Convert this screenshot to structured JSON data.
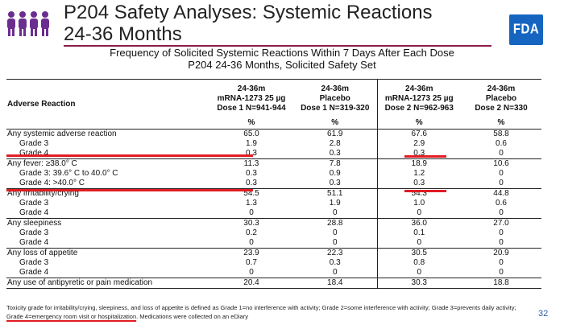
{
  "header": {
    "title_line1": "P204 Safety Analyses: Systemic Reactions",
    "title_line2": "24-36 Months",
    "logo_text": "FDA",
    "icon": "people-group-icon"
  },
  "subtitle": {
    "line1": "Frequency of Solicited Systemic Reactions Within 7 Days After Each Dose",
    "line2": "P204 24-36 Months, Solicited Safety Set"
  },
  "table": {
    "row_header": "Adverse Reaction",
    "columns": [
      {
        "l1": "24-36m",
        "l2": "mRNA-1273 25 µg",
        "l3": "Dose 1 N=941-944",
        "unit": "%"
      },
      {
        "l1": "24-36m",
        "l2": "Placebo",
        "l3": "Dose 1 N=319-320",
        "unit": "%"
      },
      {
        "l1": "24-36m",
        "l2": "mRNA-1273 25 µg",
        "l3": "Dose 2 N=962-963",
        "unit": "%"
      },
      {
        "l1": "24-36m",
        "l2": "Placebo",
        "l3": "Dose 2 N=330",
        "unit": "%"
      }
    ],
    "rows": [
      {
        "label": "Any systemic adverse reaction",
        "values": [
          "65.0",
          "61.9",
          "67.6",
          "58.8"
        ]
      },
      {
        "label": "Grade 3",
        "values": [
          "1.9",
          "2.8",
          "2.9",
          "0.6"
        ]
      },
      {
        "label": "Grade 4",
        "values": [
          "0.3",
          "0.3",
          "0.3",
          "0"
        ]
      },
      {
        "label": "Any fever: ≥38.0° C",
        "values": [
          "11.3",
          "7.8",
          "18.9",
          "10.6"
        ]
      },
      {
        "label": "Grade 3: 39.6° C to 40.0° C",
        "values": [
          "0.3",
          "0.9",
          "1.2",
          "0"
        ]
      },
      {
        "label": "Grade 4: >40.0° C",
        "values": [
          "0.3",
          "0.3",
          "0.3",
          "0"
        ]
      },
      {
        "label": "Any irritability/crying",
        "values": [
          "54.5",
          "51.1",
          "54.3",
          "44.8"
        ]
      },
      {
        "label": "Grade 3",
        "values": [
          "1.3",
          "1.9",
          "1.0",
          "0.6"
        ]
      },
      {
        "label": "Grade 4",
        "values": [
          "0",
          "0",
          "0",
          "0"
        ]
      },
      {
        "label": "Any sleepiness",
        "values": [
          "30.3",
          "28.8",
          "36.0",
          "27.0"
        ]
      },
      {
        "label": "Grade 3",
        "values": [
          "0.2",
          "0",
          "0.1",
          "0"
        ]
      },
      {
        "label": "Grade 4",
        "values": [
          "0",
          "0",
          "0",
          "0"
        ]
      },
      {
        "label": "Any loss of appetite",
        "values": [
          "23.9",
          "22.3",
          "30.5",
          "20.9"
        ]
      },
      {
        "label": "Grade 3",
        "values": [
          "0.7",
          "0.3",
          "0.8",
          "0"
        ]
      },
      {
        "label": "Grade 4",
        "values": [
          "0",
          "0",
          "0",
          "0"
        ]
      },
      {
        "label": "Any use of antipyretic or pain medication",
        "values": [
          "20.4",
          "18.4",
          "30.3",
          "18.8"
        ]
      }
    ]
  },
  "footnote": {
    "part1": "Toxicity grade for irritability/crying, sleepiness, and loss of appetite is defined as Grade 1=no interference with activity; Grade 2=some interference with activity; Grade 3=prevents daily activity; ",
    "highlight": "Grade 4=emergency room visit or hospitalization",
    "part2": ". Medications were collected on an eDiary"
  },
  "page_number": "32",
  "colors": {
    "accent_rule": "#8a1d4a",
    "highlight": "#e21c23",
    "logo": "#1565c0",
    "icon": "#6b2d8f"
  }
}
